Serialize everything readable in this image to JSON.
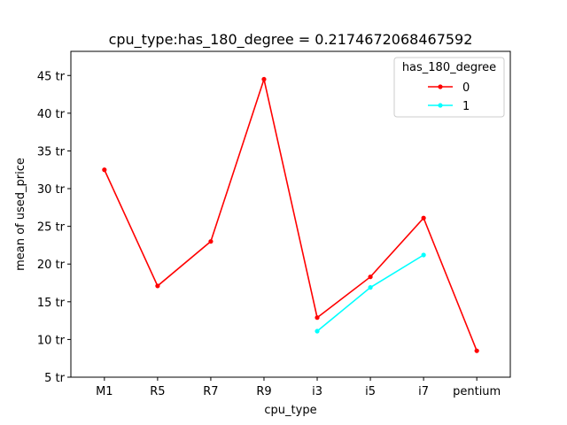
{
  "chart_data": {
    "type": "line",
    "title": "cpu_type:has_180_degree = 0.2174672068467592",
    "xlabel": "cpu_type",
    "ylabel": "mean of used_price",
    "categories": [
      "M1",
      "R5",
      "R7",
      "R9",
      "i3",
      "i5",
      "i7",
      "pentium"
    ],
    "ylim": [
      5,
      48.2
    ],
    "yticks": [
      5,
      10,
      15,
      20,
      25,
      30,
      35,
      40,
      45
    ],
    "ytick_suffix": " tr",
    "legend": {
      "title": "has_180_degree",
      "placement": "top-right"
    },
    "grid": false,
    "series": [
      {
        "name": "0",
        "color": "#ff0000",
        "values": [
          32.5,
          17.1,
          23.0,
          44.5,
          12.9,
          18.3,
          26.1,
          8.5
        ]
      },
      {
        "name": "1",
        "color": "#00ffff",
        "values": [
          null,
          null,
          null,
          null,
          11.1,
          16.9,
          21.2,
          null
        ]
      }
    ]
  }
}
